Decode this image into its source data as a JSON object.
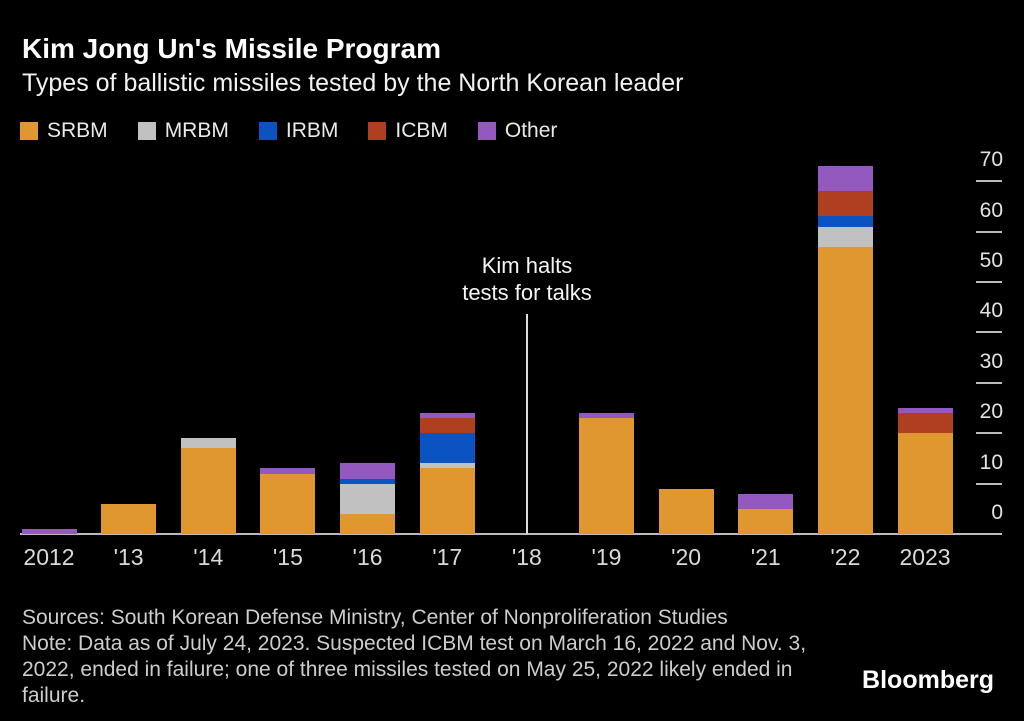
{
  "header": {
    "title": "Kim Jong Un's Missile Program",
    "subtitle": "Types of ballistic missiles tested by the North Korean leader"
  },
  "chart_data": {
    "type": "bar",
    "stacked": true,
    "title": "Kim Jong Un's Missile Program",
    "subtitle": "Types of ballistic missiles tested by the North Korean leader",
    "categories": [
      "2012",
      "'13",
      "'14",
      "'15",
      "'16",
      "'17",
      "'18",
      "'19",
      "'20",
      "'21",
      "'22",
      "2023"
    ],
    "series": [
      {
        "name": "SRBM",
        "color": "#E0972F",
        "values": [
          0,
          6,
          17,
          12,
          4,
          13,
          0,
          23,
          9,
          5,
          57,
          20
        ]
      },
      {
        "name": "MRBM",
        "color": "#C1C1C1",
        "values": [
          0,
          0,
          2,
          0,
          6,
          1,
          0,
          0,
          0,
          0,
          4,
          0
        ]
      },
      {
        "name": "IRBM",
        "color": "#0C53C2",
        "values": [
          0,
          0,
          0,
          0,
          1,
          6,
          0,
          0,
          0,
          0,
          2,
          0
        ]
      },
      {
        "name": "ICBM",
        "color": "#AE3F20",
        "values": [
          0,
          0,
          0,
          0,
          0,
          3,
          0,
          0,
          0,
          0,
          5,
          4
        ]
      },
      {
        "name": "Other",
        "color": "#9459BF",
        "values": [
          1,
          0,
          0,
          1,
          3,
          1,
          0,
          1,
          0,
          3,
          5,
          1
        ]
      }
    ],
    "totals": [
      1,
      6,
      19,
      13,
      14,
      24,
      0,
      24,
      9,
      8,
      73,
      25
    ],
    "ylim": [
      0,
      75
    ],
    "yticks": [
      0,
      10,
      20,
      30,
      40,
      50,
      60,
      70
    ],
    "grid": false,
    "legend_position": "top-left",
    "axis_side": "right",
    "annotation": {
      "line1": "Kim halts",
      "line2": "tests for talks",
      "category": "'18"
    }
  },
  "footer": {
    "lines": [
      "Sources: South Korean Defense Ministry, Center of Nonproliferation Studies",
      "Note: Data as of July 24, 2023. Suspected ICBM test on March 16, 2022 and Nov. 3,",
      "2022, ended in failure; one of three missiles tested on May 25, 2022 likely ended in",
      "failure."
    ],
    "brand": "Bloomberg"
  }
}
